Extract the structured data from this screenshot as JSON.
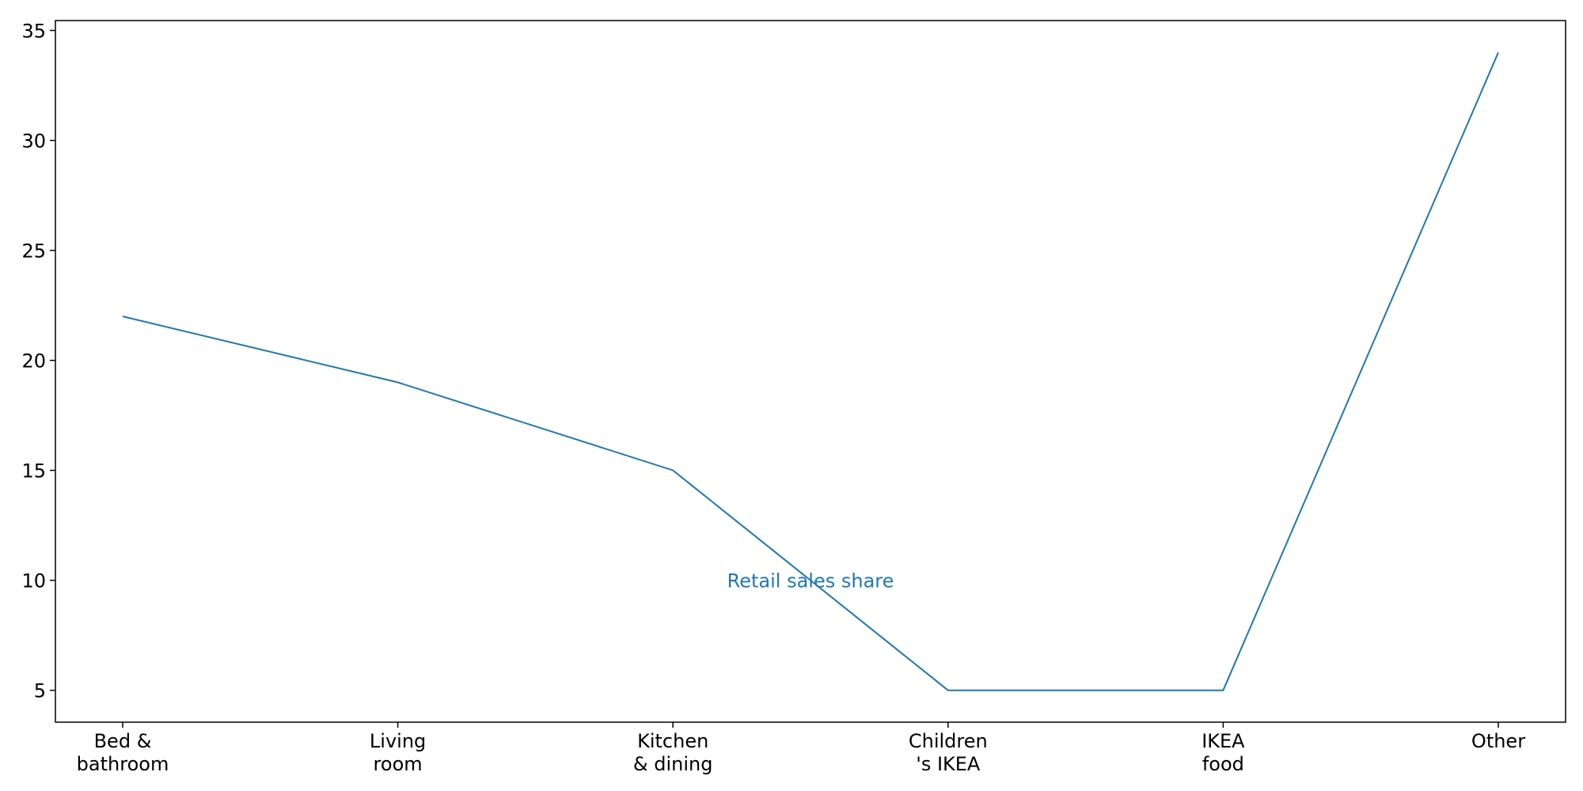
{
  "chart_data": {
    "type": "line",
    "categories": [
      [
        "Bed &",
        "bathroom"
      ],
      [
        "Living",
        "room"
      ],
      [
        "Kitchen",
        "& dining"
      ],
      [
        "Children",
        "'s IKEA"
      ],
      [
        "IKEA",
        "food"
      ],
      [
        "Other"
      ]
    ],
    "series": [
      {
        "values": [
          22,
          19,
          15,
          5,
          5,
          34
        ]
      }
    ],
    "annotation": {
      "text": "Retail sales share",
      "x_category": 2.5,
      "y": 10
    },
    "ylim": [
      3.55,
      35.45
    ],
    "yticks": [
      5,
      10,
      15,
      20,
      25,
      30,
      35
    ],
    "grid": false,
    "colors": {
      "line": "#1f77b4",
      "annotation": "#1f77b4",
      "axes": "#000000"
    }
  }
}
